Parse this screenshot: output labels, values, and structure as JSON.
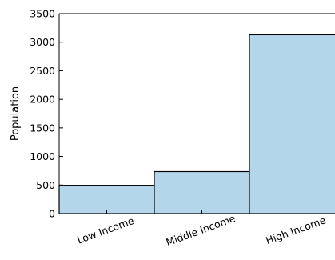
{
  "chart_data": {
    "type": "bar",
    "title": "",
    "xlabel": "",
    "ylabel": "Population",
    "categories": [
      "Low Income",
      "Middle Income",
      "High Income"
    ],
    "values": [
      495,
      735,
      3130
    ],
    "ylim": [
      0,
      3500
    ],
    "yticks": [
      0,
      500,
      1000,
      1500,
      2000,
      2500,
      3000,
      3500
    ],
    "grid": false,
    "legend": "none",
    "bar_color": "#b3d6ea",
    "edge_color": "#000000"
  }
}
